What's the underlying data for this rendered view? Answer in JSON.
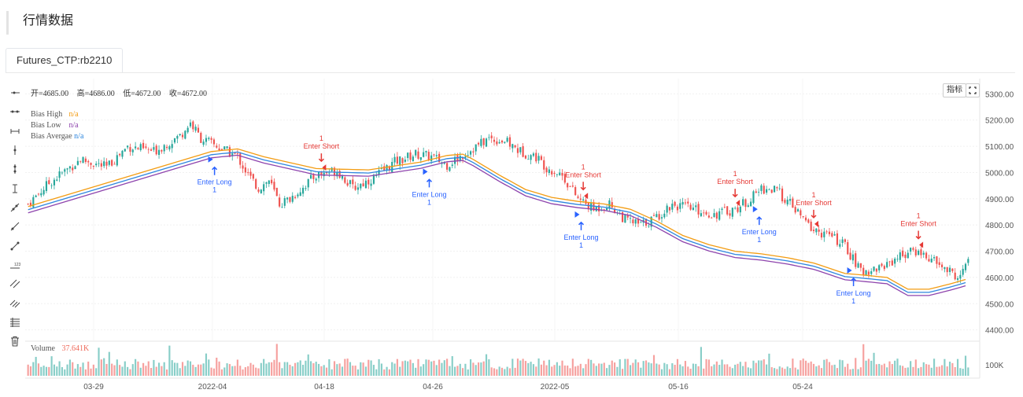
{
  "page": {
    "title": "行情数据"
  },
  "tabs": [
    {
      "label": "Futures_CTP:rb2210"
    }
  ],
  "ohlc": {
    "open": "开=4685.00",
    "high": "高=4686.00",
    "low": "低=4672.00",
    "close": "收=4672.00"
  },
  "legend": [
    {
      "name": "Bias High",
      "value": "n/a",
      "color": "#f39c12"
    },
    {
      "name": "Bias Low",
      "value": "n/a",
      "color": "#8e44ad"
    },
    {
      "name": "Bias Avergae",
      "value": "n/a",
      "color": "#2e86de"
    }
  ],
  "volume": {
    "label": "Volume",
    "value": "37.641K"
  },
  "buttons": {
    "indicator": "指标"
  },
  "toolbar_icons": [
    "horizontal-ray-icon",
    "horizontal-line-icon",
    "horizontal-segment-icon",
    "vertical-line-icon",
    "vertical-ray-icon",
    "vertical-segment-icon",
    "trend-line-icon",
    "ray-line-icon",
    "segment-line-icon",
    "price-label-icon",
    "parallel-channel-icon",
    "fib-channel-icon",
    "horizontal-lines-icon",
    "trash-icon"
  ],
  "colors": {
    "up": "#26a69a",
    "down": "#ef5350",
    "bias_high": "#f39c12",
    "bias_low": "#8e44ad",
    "bias_avg": "#2e86de",
    "long": "#2962ff",
    "short": "#e53935"
  },
  "chart_data": {
    "type": "line",
    "price_axis": {
      "ticks": [
        "5300.00",
        "5200.00",
        "5100.00",
        "5000.00",
        "4900.00",
        "4800.00",
        "4700.00",
        "4600.00",
        "4500.00",
        "4400.00"
      ],
      "range": [
        4360,
        5340
      ]
    },
    "volume_axis": {
      "ticks": [
        "100K"
      ],
      "range": [
        0,
        150
      ]
    },
    "x_ticks": [
      "03-29",
      "2022-04",
      "04-18",
      "04-26",
      "2022-05",
      "05-16",
      "05-24"
    ],
    "bars_count": 360,
    "close_path": [
      [
        0,
        4880
      ],
      [
        8,
        4960
      ],
      [
        20,
        5050
      ],
      [
        30,
        5020
      ],
      [
        38,
        5100
      ],
      [
        48,
        5080
      ],
      [
        58,
        5140
      ],
      [
        62,
        5190
      ],
      [
        66,
        5130
      ],
      [
        74,
        5090
      ],
      [
        80,
        5060
      ],
      [
        84,
        4990
      ],
      [
        88,
        4940
      ],
      [
        92,
        4970
      ],
      [
        96,
        4880
      ],
      [
        100,
        4900
      ],
      [
        110,
        4990
      ],
      [
        118,
        5010
      ],
      [
        124,
        4940
      ],
      [
        132,
        4980
      ],
      [
        140,
        5040
      ],
      [
        148,
        5070
      ],
      [
        154,
        5060
      ],
      [
        160,
        5030
      ],
      [
        168,
        5080
      ],
      [
        176,
        5130
      ],
      [
        182,
        5120
      ],
      [
        188,
        5080
      ],
      [
        194,
        5060
      ],
      [
        198,
        5020
      ],
      [
        204,
        4990
      ],
      [
        210,
        4900
      ],
      [
        216,
        4860
      ],
      [
        222,
        4880
      ],
      [
        228,
        4820
      ],
      [
        234,
        4800
      ],
      [
        240,
        4830
      ],
      [
        246,
        4880
      ],
      [
        254,
        4860
      ],
      [
        262,
        4840
      ],
      [
        270,
        4860
      ],
      [
        276,
        4900
      ],
      [
        280,
        4940
      ],
      [
        286,
        4930
      ],
      [
        292,
        4870
      ],
      [
        296,
        4820
      ],
      [
        300,
        4780
      ],
      [
        306,
        4760
      ],
      [
        312,
        4720
      ],
      [
        318,
        4620
      ],
      [
        326,
        4640
      ],
      [
        334,
        4690
      ],
      [
        340,
        4700
      ],
      [
        346,
        4660
      ],
      [
        352,
        4620
      ],
      [
        356,
        4600
      ],
      [
        359,
        4672
      ]
    ],
    "bias_high": [
      [
        0,
        4870
      ],
      [
        20,
        4930
      ],
      [
        40,
        4990
      ],
      [
        60,
        5050
      ],
      [
        70,
        5080
      ],
      [
        80,
        5090
      ],
      [
        90,
        5060
      ],
      [
        110,
        5015
      ],
      [
        130,
        5010
      ],
      [
        150,
        5040
      ],
      [
        160,
        5065
      ],
      [
        166,
        5070
      ],
      [
        170,
        5050
      ],
      [
        180,
        4990
      ],
      [
        190,
        4935
      ],
      [
        200,
        4905
      ],
      [
        210,
        4890
      ],
      [
        220,
        4880
      ],
      [
        230,
        4860
      ],
      [
        240,
        4815
      ],
      [
        250,
        4760
      ],
      [
        260,
        4725
      ],
      [
        270,
        4700
      ],
      [
        280,
        4690
      ],
      [
        290,
        4675
      ],
      [
        300,
        4655
      ],
      [
        306,
        4635
      ],
      [
        312,
        4615
      ],
      [
        318,
        4610
      ],
      [
        328,
        4600
      ],
      [
        336,
        4555
      ],
      [
        344,
        4555
      ],
      [
        352,
        4575
      ],
      [
        359,
        4595
      ]
    ],
    "bias_avg_offset": -12,
    "bias_low_offset": -24,
    "signals": [
      {
        "type": "long",
        "bar": 70,
        "label": "Enter Long",
        "qty": "1"
      },
      {
        "type": "short",
        "bar": 112,
        "label": "Enter Short",
        "qty": "1"
      },
      {
        "type": "long",
        "bar": 152,
        "label": "Enter Long",
        "qty": "1"
      },
      {
        "type": "short",
        "bar": 212,
        "label": "Enter Short",
        "qty": "1"
      },
      {
        "type": "long",
        "bar": 210,
        "label": "Enter Long",
        "qty": "1"
      },
      {
        "type": "short",
        "bar": 270,
        "label": "Enter Short",
        "qty": "1"
      },
      {
        "type": "long",
        "bar": 278,
        "label": "Enter Long",
        "qty": "1"
      },
      {
        "type": "short",
        "bar": 300,
        "label": "Enter Short",
        "qty": "1"
      },
      {
        "type": "long",
        "bar": 314,
        "label": "Enter Long",
        "qty": "1"
      },
      {
        "type": "short",
        "bar": 340,
        "label": "Enter Short",
        "qty": "1"
      }
    ]
  }
}
